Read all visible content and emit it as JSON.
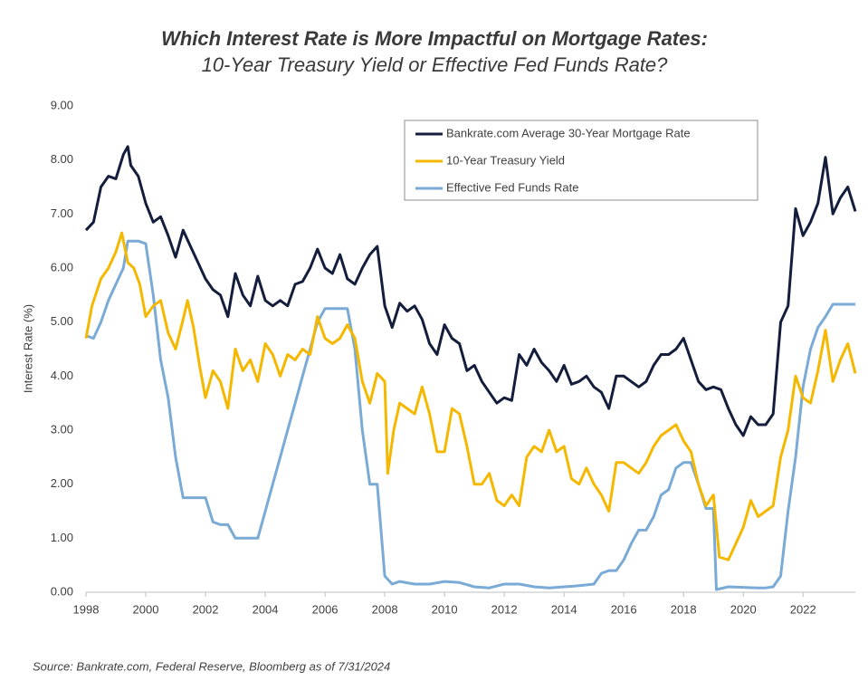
{
  "chart_data": {
    "type": "line",
    "title": "Which Interest Rate is More Impactful on Mortgage Rates:",
    "subtitle": "10-Year Treasury Yield or Effective Fed Funds Rate?",
    "y_label": "Interest Rate (%)",
    "source": "Source: Bankrate.com, Federal Reserve, Bloomberg as of 7/31/2024",
    "legend": "top right",
    "grid": false,
    "xlim": [
      1998,
      2023.75
    ],
    "xticks": [
      1998,
      2000,
      2002,
      2004,
      2006,
      2008,
      2010,
      2012,
      2014,
      2016,
      2018,
      2020,
      2022
    ],
    "ylim": [
      0,
      9
    ],
    "yticks": [
      {
        "value": 0,
        "label": "0.00"
      },
      {
        "value": 1,
        "label": "1.00"
      },
      {
        "value": 2,
        "label": "2.00"
      },
      {
        "value": 3,
        "label": "3.00"
      },
      {
        "value": 4,
        "label": "4.00"
      },
      {
        "value": 5,
        "label": "5.00"
      },
      {
        "value": 6,
        "label": "6.00"
      },
      {
        "value": 7,
        "label": "7.00"
      },
      {
        "value": 8,
        "label": "8.00"
      },
      {
        "value": 9,
        "label": "9.00"
      }
    ],
    "series": [
      {
        "name": "Bankrate.com Average 30-Year Mortgage Rate",
        "color": "#141e3c",
        "x": [
          1998,
          1998.25,
          1998.5,
          1998.75,
          1999,
          1999.25,
          1999.4,
          1999.5,
          1999.75,
          2000,
          2000.25,
          2000.5,
          2000.75,
          2001,
          2001.25,
          2001.5,
          2001.75,
          2002,
          2002.25,
          2002.5,
          2002.75,
          2003,
          2003.25,
          2003.5,
          2003.75,
          2004,
          2004.25,
          2004.5,
          2004.75,
          2005,
          2005.25,
          2005.5,
          2005.75,
          2006,
          2006.25,
          2006.5,
          2006.75,
          2007,
          2007.25,
          2007.5,
          2007.75,
          2008,
          2008.25,
          2008.5,
          2008.75,
          2009,
          2009.25,
          2009.5,
          2009.75,
          2010,
          2010.25,
          2010.5,
          2010.75,
          2011,
          2011.25,
          2011.5,
          2011.75,
          2012,
          2012.25,
          2012.5,
          2012.75,
          2013,
          2013.25,
          2013.5,
          2013.75,
          2014,
          2014.25,
          2014.5,
          2014.75,
          2015,
          2015.25,
          2015.5,
          2015.75,
          2016,
          2016.25,
          2016.5,
          2016.75,
          2017,
          2017.25,
          2017.5,
          2017.75,
          2018,
          2018.25,
          2018.5,
          2018.75,
          2019,
          2019.25,
          2019.5,
          2019.75,
          2020,
          2020.25,
          2020.5,
          2020.75,
          2021,
          2021.25,
          2021.5,
          2021.75,
          2022,
          2022.25,
          2022.5,
          2022.75,
          2023,
          2023.25,
          2023.5,
          2023.75
        ],
        "values": [
          6.7,
          6.85,
          7.5,
          7.7,
          7.65,
          8.1,
          8.25,
          7.9,
          7.7,
          7.2,
          6.85,
          6.95,
          6.6,
          6.2,
          6.7,
          6.4,
          6.1,
          5.8,
          5.6,
          5.5,
          5.1,
          5.9,
          5.5,
          5.3,
          5.85,
          5.4,
          5.3,
          5.4,
          5.3,
          5.7,
          5.75,
          6.0,
          6.35,
          6.0,
          5.9,
          6.25,
          5.8,
          5.7,
          6.0,
          6.25,
          6.4,
          5.3,
          4.9,
          5.35,
          5.2,
          5.3,
          5.05,
          4.6,
          4.4,
          4.95,
          4.7,
          4.6,
          4.1,
          4.2,
          3.9,
          3.7,
          3.5,
          3.6,
          3.55,
          4.4,
          4.2,
          4.5,
          4.25,
          4.1,
          3.9,
          4.2,
          3.85,
          3.9,
          4.0,
          3.8,
          3.7,
          3.4,
          4.0,
          4.0,
          3.9,
          3.8,
          3.9,
          4.2,
          4.4,
          4.4,
          4.5,
          4.7,
          4.3,
          3.9,
          3.75,
          3.8,
          3.75,
          3.4,
          3.1,
          2.9,
          3.25,
          3.1,
          3.1,
          3.3,
          5.0,
          5.3,
          7.1,
          6.6,
          6.85,
          7.2,
          8.05,
          7.0,
          7.3,
          7.5,
          7.05
        ]
      },
      {
        "name": "10-Year Treasury Yield",
        "color": "#f5b800",
        "x": [
          1998,
          1998.2,
          1998.5,
          1998.75,
          1999,
          1999.2,
          1999.4,
          1999.6,
          1999.8,
          2000,
          2000.25,
          2000.5,
          2000.75,
          2001,
          2001.25,
          2001.4,
          2001.6,
          2001.8,
          2002,
          2002.25,
          2002.5,
          2002.75,
          2003,
          2003.25,
          2003.5,
          2003.75,
          2004,
          2004.25,
          2004.5,
          2004.75,
          2005,
          2005.25,
          2005.5,
          2005.75,
          2006,
          2006.25,
          2006.5,
          2006.75,
          2007,
          2007.25,
          2007.5,
          2007.75,
          2008,
          2008.1,
          2008.3,
          2008.5,
          2008.75,
          2009,
          2009.25,
          2009.5,
          2009.75,
          2010,
          2010.25,
          2010.5,
          2010.75,
          2011,
          2011.25,
          2011.5,
          2011.75,
          2012,
          2012.25,
          2012.5,
          2012.75,
          2013,
          2013.25,
          2013.5,
          2013.75,
          2014,
          2014.25,
          2014.5,
          2014.75,
          2015,
          2015.25,
          2015.5,
          2015.75,
          2016,
          2016.25,
          2016.5,
          2016.75,
          2017,
          2017.25,
          2017.5,
          2017.75,
          2018,
          2018.25,
          2018.5,
          2018.75,
          2019,
          2019.2,
          2019.5,
          2019.75,
          2020,
          2020.25,
          2020.5,
          2020.75,
          2021,
          2021.25,
          2021.5,
          2021.75,
          2022,
          2022.25,
          2022.5,
          2022.75,
          2023,
          2023.25,
          2023.5,
          2023.75
        ],
        "values": [
          4.7,
          5.3,
          5.8,
          6.0,
          6.3,
          6.65,
          6.1,
          6.0,
          5.7,
          5.1,
          5.3,
          5.4,
          4.8,
          4.5,
          5.05,
          5.4,
          4.9,
          4.2,
          3.6,
          4.1,
          3.9,
          3.4,
          4.5,
          4.1,
          4.3,
          3.9,
          4.6,
          4.4,
          4.0,
          4.4,
          4.3,
          4.5,
          4.4,
          5.1,
          4.7,
          4.6,
          4.7,
          4.95,
          4.7,
          3.9,
          3.5,
          4.05,
          3.9,
          2.2,
          3.0,
          3.5,
          3.4,
          3.3,
          3.8,
          3.3,
          2.6,
          2.6,
          3.4,
          3.3,
          2.7,
          2.0,
          2.0,
          2.2,
          1.7,
          1.6,
          1.8,
          1.6,
          2.5,
          2.7,
          2.6,
          3.0,
          2.6,
          2.7,
          2.1,
          2.0,
          2.3,
          2.0,
          1.8,
          1.5,
          2.4,
          2.4,
          2.3,
          2.2,
          2.4,
          2.7,
          2.9,
          3.0,
          3.1,
          2.8,
          2.6,
          2.0,
          1.6,
          1.8,
          0.65,
          0.6,
          0.9,
          1.2,
          1.7,
          1.4,
          1.5,
          1.6,
          2.5,
          3.0,
          4.0,
          3.6,
          3.5,
          4.1,
          4.85,
          3.9,
          4.3,
          4.6,
          4.05
        ]
      },
      {
        "name": "Effective Fed Funds Rate",
        "color": "#7aaad6",
        "x": [
          1998,
          1998.25,
          1998.5,
          1998.75,
          1999,
          1999.25,
          1999.4,
          1999.75,
          2000,
          2000.25,
          2000.5,
          2000.75,
          2001,
          2001.25,
          2001.5,
          2001.75,
          2002,
          2002.25,
          2002.5,
          2002.75,
          2003,
          2003.5,
          2003.75,
          2004,
          2004.25,
          2004.5,
          2004.75,
          2005,
          2005.25,
          2005.5,
          2005.75,
          2006,
          2006.5,
          2006.75,
          2007,
          2007.25,
          2007.5,
          2007.75,
          2008,
          2008.25,
          2008.5,
          2009,
          2009.5,
          2010,
          2010.5,
          2011,
          2011.5,
          2012,
          2012.5,
          2013,
          2013.5,
          2014,
          2014.5,
          2015,
          2015.25,
          2015.5,
          2015.75,
          2016,
          2016.25,
          2016.5,
          2016.75,
          2017,
          2017.25,
          2017.5,
          2017.75,
          2018,
          2018.25,
          2018.5,
          2018.75,
          2019,
          2019.1,
          2019.5,
          2020,
          2020.5,
          2020.75,
          2021,
          2021.25,
          2021.5,
          2021.75,
          2022,
          2022.25,
          2022.5,
          2022.75,
          2023,
          2023.75
        ],
        "values": [
          4.75,
          4.7,
          5.0,
          5.4,
          5.7,
          6.0,
          6.5,
          6.5,
          6.45,
          5.5,
          4.3,
          3.6,
          2.5,
          1.75,
          1.75,
          1.75,
          1.75,
          1.3,
          1.25,
          1.25,
          1.0,
          1.0,
          1.0,
          1.5,
          2.0,
          2.5,
          3.0,
          3.5,
          4.0,
          4.5,
          5.0,
          5.25,
          5.25,
          5.25,
          4.5,
          3.0,
          2.0,
          2.0,
          0.3,
          0.15,
          0.2,
          0.15,
          0.15,
          0.2,
          0.18,
          0.1,
          0.08,
          0.15,
          0.15,
          0.1,
          0.08,
          0.1,
          0.12,
          0.15,
          0.35,
          0.4,
          0.4,
          0.6,
          0.9,
          1.15,
          1.15,
          1.4,
          1.8,
          1.9,
          2.3,
          2.4,
          2.4,
          2.0,
          1.55,
          1.55,
          0.05,
          0.1,
          0.09,
          0.08,
          0.08,
          0.1,
          0.3,
          1.5,
          2.5,
          3.8,
          4.5,
          4.9,
          5.1,
          5.33,
          5.33
        ]
      }
    ]
  }
}
